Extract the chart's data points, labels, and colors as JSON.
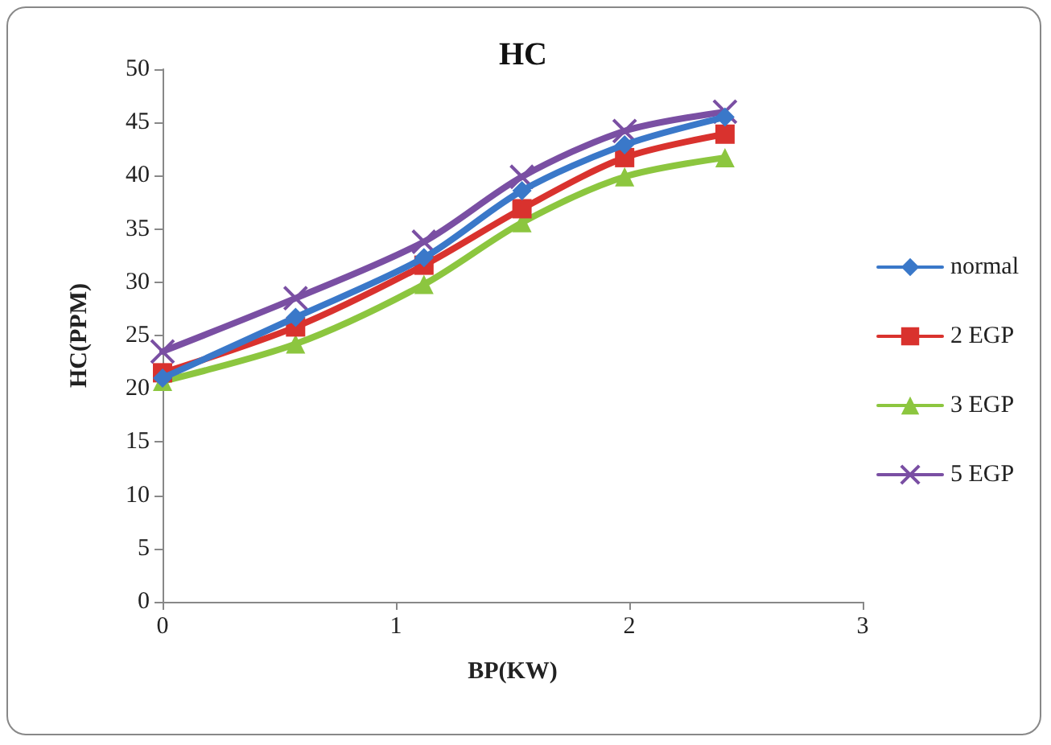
{
  "chart_data": {
    "type": "line",
    "title": "HC",
    "xlabel": "BP(KW)",
    "ylabel": "HC(PPM)",
    "x": [
      0,
      0.57,
      1.12,
      1.54,
      1.98,
      2.41
    ],
    "series": [
      {
        "name": "normal",
        "color": "#3a78c9",
        "marker": "diamond",
        "values": [
          21,
          26.7,
          32.3,
          38.6,
          42.9,
          45.5
        ]
      },
      {
        "name": "2 EGP",
        "color": "#d9322e",
        "marker": "square",
        "values": [
          21.5,
          25.8,
          31.6,
          36.9,
          41.7,
          43.9
        ]
      },
      {
        "name": "3 EGP",
        "color": "#8cc63f",
        "marker": "triangle",
        "values": [
          20.7,
          24.2,
          29.8,
          35.6,
          39.9,
          41.7
        ]
      },
      {
        "name": "5 EGP",
        "color": "#7a4fa3",
        "marker": "cross",
        "values": [
          23.5,
          28.5,
          33.8,
          39.9,
          44.2,
          46
        ]
      }
    ],
    "xlim": [
      0,
      3
    ],
    "xticks": [
      0,
      1,
      2,
      3
    ],
    "ylim": [
      0,
      50
    ],
    "yticks": [
      0,
      5,
      10,
      15,
      20,
      25,
      30,
      35,
      40,
      45,
      50
    ],
    "grid": false,
    "legend": "right"
  }
}
